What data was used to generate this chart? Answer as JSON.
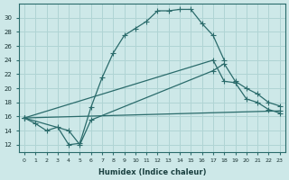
{
  "xlabel": "Humidex (Indice chaleur)",
  "bg_color": "#cde8e8",
  "grid_color": "#b0d4d4",
  "line_color": "#2a6b6b",
  "xlim": [
    -0.5,
    23.5
  ],
  "ylim": [
    11,
    32
  ],
  "xticks": [
    0,
    1,
    2,
    3,
    4,
    5,
    6,
    7,
    8,
    9,
    10,
    11,
    12,
    13,
    14,
    15,
    16,
    17,
    18,
    19,
    20,
    21,
    22,
    23
  ],
  "yticks": [
    12,
    14,
    16,
    18,
    20,
    22,
    24,
    26,
    28,
    30
  ],
  "series1_x": [
    0,
    1,
    2,
    3,
    4,
    5,
    6,
    7,
    8,
    9,
    10,
    11,
    12,
    13,
    14,
    15,
    16,
    17,
    18
  ],
  "series1_y": [
    15.8,
    15.0,
    14.0,
    14.5,
    12.0,
    12.2,
    17.3,
    21.5,
    25.0,
    27.5,
    28.5,
    29.5,
    31.0,
    31.0,
    31.2,
    31.2,
    29.2,
    27.5,
    24.0
  ],
  "series2_x": [
    0,
    17,
    18,
    19,
    20,
    21,
    22,
    23
  ],
  "series2_y": [
    15.8,
    24.0,
    21.0,
    20.8,
    18.5,
    18.0,
    17.0,
    16.5
  ],
  "series3_x": [
    0,
    4,
    5,
    6,
    17,
    18,
    19,
    20,
    21,
    22,
    23
  ],
  "series3_y": [
    15.8,
    14.0,
    12.0,
    15.5,
    22.5,
    23.5,
    21.0,
    20.0,
    19.2,
    18.0,
    17.5
  ],
  "series4_x": [
    0,
    23
  ],
  "series4_y": [
    15.8,
    16.8
  ]
}
